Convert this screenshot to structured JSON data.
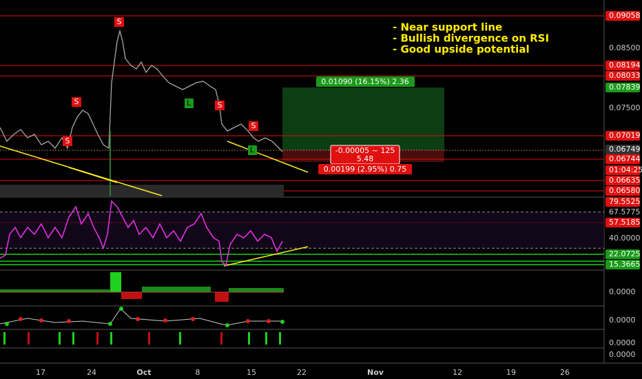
{
  "annotation": {
    "lines": [
      "- Near support line",
      "- Bullish divergence on RSI",
      "- Good upside potential"
    ]
  },
  "price_axis": {
    "labels": [
      "0.09058",
      "0.08500",
      "0.08194",
      "0.08033",
      "0.07839",
      "0.07500",
      "0.07019",
      "0.06749",
      "0.06744",
      "01:04:25",
      "0.06635",
      "0.06580"
    ]
  },
  "rsi_axis": {
    "labels": [
      "79.5525",
      "67.5775",
      "57.5185",
      "40.0000",
      "22.0725",
      "15.3665"
    ]
  },
  "indicator_axes": {
    "labels": [
      "0.0000",
      "0.0000",
      "0.0000",
      "0.0000"
    ]
  },
  "position": {
    "target_label": "0.01090 (16.15%) 2.36",
    "center_label_line1": "-0.00005 ~ 125",
    "center_label_line2": "5.48",
    "stop_label": "0.00199 (2.95%) 0.75"
  },
  "signals": {
    "sell": [
      "S",
      "S",
      "S",
      "S",
      "S"
    ],
    "long": [
      "L",
      "L"
    ]
  },
  "time_axis": {
    "labels": [
      "17",
      "24",
      "Oct",
      "8",
      "15",
      "22",
      "Nov",
      "12",
      "19",
      "26"
    ]
  }
}
